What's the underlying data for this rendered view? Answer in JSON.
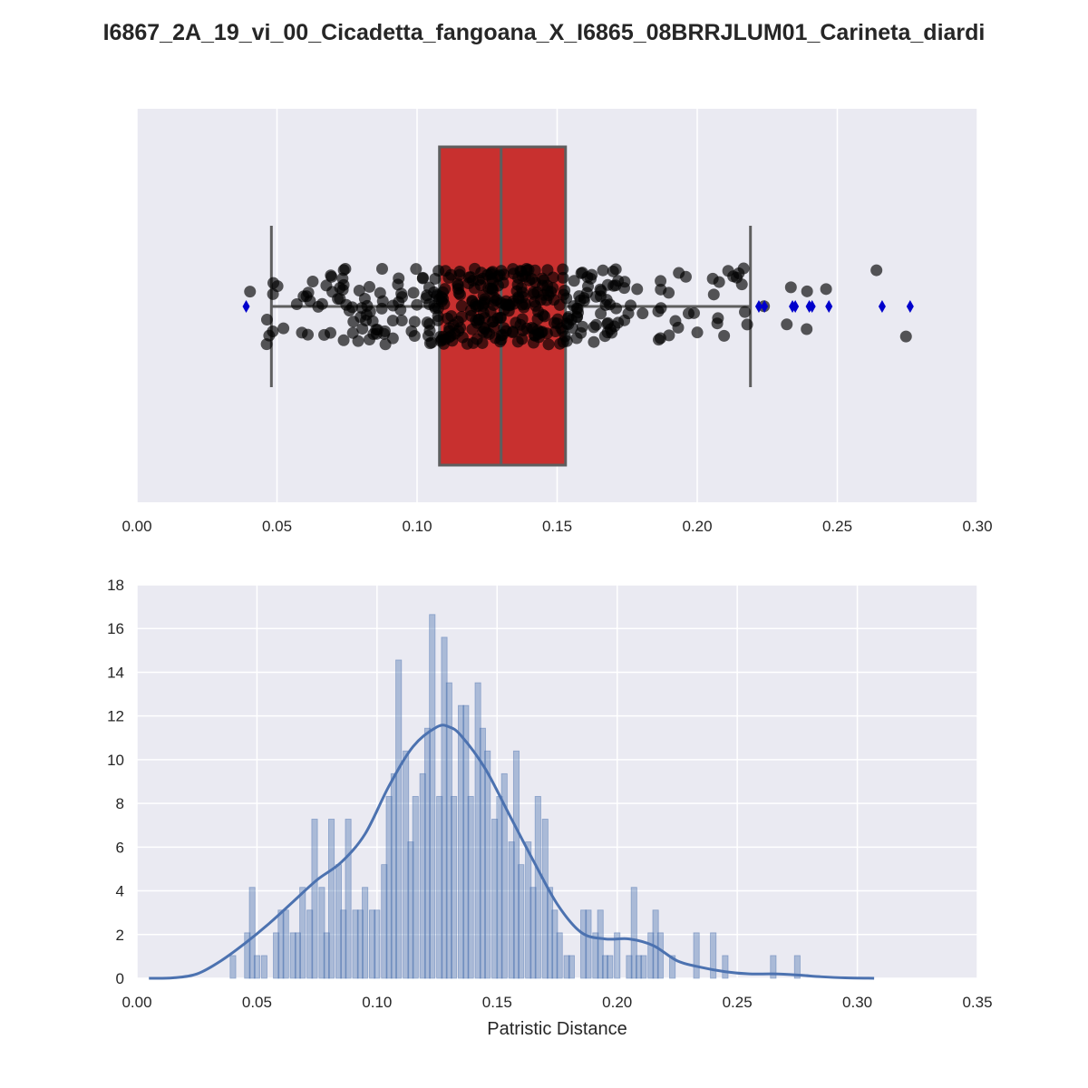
{
  "title": "I6867_2A_19_vi_00_Cicadetta_fangoana_X_I6865_08BRRJLUM01_Carineta_diardi",
  "colors": {
    "plot_background": "#EAEAF2",
    "grid": "#FFFFFF",
    "box_fill": "#C8302F",
    "box_edge": "#5E5E5E",
    "points": "#000000",
    "outlier_markers": "#0000CC",
    "hist_bars": "#4C72B0",
    "kde_line": "#4C72B0"
  },
  "chart_data": [
    {
      "type": "box",
      "orientation": "horizontal",
      "xlim": [
        0.0,
        0.3
      ],
      "xticks": [
        "0.00",
        "0.05",
        "0.10",
        "0.15",
        "0.20",
        "0.25",
        "0.30"
      ],
      "grid": true,
      "stats": {
        "whisker_low": 0.048,
        "q1": 0.108,
        "median": 0.13,
        "q3": 0.153,
        "whisker_high": 0.219
      },
      "outliers": [
        0.039,
        0.222,
        0.224,
        0.234,
        0.235,
        0.24,
        0.241,
        0.247,
        0.266,
        0.276
      ],
      "stripplot": "jittered points, one per pairwise distance (overlaid in black, semi-transparent)"
    },
    {
      "type": "bar",
      "subtype": "histogram_with_kde",
      "xlabel": "Patristic Distance",
      "ylabel": "",
      "xlim": [
        0.0,
        0.35
      ],
      "ylim": [
        0,
        18
      ],
      "xticks": [
        "0.00",
        "0.05",
        "0.10",
        "0.15",
        "0.20",
        "0.25",
        "0.30",
        "0.35"
      ],
      "yticks": [
        "0",
        "2",
        "4",
        "6",
        "8",
        "10",
        "12",
        "14",
        "16",
        "18"
      ],
      "grid": true,
      "bin_width": 0.00236,
      "bins": [
        {
          "x": 0.04,
          "y": 1.04
        },
        {
          "x": 0.046,
          "y": 2.08
        },
        {
          "x": 0.048,
          "y": 4.16
        },
        {
          "x": 0.05,
          "y": 1.04
        },
        {
          "x": 0.053,
          "y": 1.04
        },
        {
          "x": 0.058,
          "y": 2.08
        },
        {
          "x": 0.06,
          "y": 3.12
        },
        {
          "x": 0.062,
          "y": 3.12
        },
        {
          "x": 0.065,
          "y": 2.08
        },
        {
          "x": 0.067,
          "y": 2.08
        },
        {
          "x": 0.069,
          "y": 4.16
        },
        {
          "x": 0.072,
          "y": 3.12
        },
        {
          "x": 0.074,
          "y": 7.28
        },
        {
          "x": 0.077,
          "y": 4.16
        },
        {
          "x": 0.079,
          "y": 2.08
        },
        {
          "x": 0.081,
          "y": 7.28
        },
        {
          "x": 0.084,
          "y": 5.2
        },
        {
          "x": 0.086,
          "y": 3.12
        },
        {
          "x": 0.088,
          "y": 7.28
        },
        {
          "x": 0.091,
          "y": 3.12
        },
        {
          "x": 0.093,
          "y": 3.12
        },
        {
          "x": 0.095,
          "y": 4.16
        },
        {
          "x": 0.098,
          "y": 3.12
        },
        {
          "x": 0.1,
          "y": 3.12
        },
        {
          "x": 0.103,
          "y": 5.2
        },
        {
          "x": 0.105,
          "y": 8.32
        },
        {
          "x": 0.107,
          "y": 9.36
        },
        {
          "x": 0.109,
          "y": 14.56
        },
        {
          "x": 0.112,
          "y": 10.4
        },
        {
          "x": 0.114,
          "y": 6.24
        },
        {
          "x": 0.116,
          "y": 8.32
        },
        {
          "x": 0.119,
          "y": 9.36
        },
        {
          "x": 0.121,
          "y": 11.44
        },
        {
          "x": 0.123,
          "y": 16.64
        },
        {
          "x": 0.126,
          "y": 8.32
        },
        {
          "x": 0.128,
          "y": 15.6
        },
        {
          "x": 0.13,
          "y": 13.52
        },
        {
          "x": 0.132,
          "y": 8.32
        },
        {
          "x": 0.135,
          "y": 12.48
        },
        {
          "x": 0.137,
          "y": 12.48
        },
        {
          "x": 0.139,
          "y": 8.32
        },
        {
          "x": 0.142,
          "y": 13.52
        },
        {
          "x": 0.144,
          "y": 11.44
        },
        {
          "x": 0.146,
          "y": 10.4
        },
        {
          "x": 0.149,
          "y": 7.28
        },
        {
          "x": 0.151,
          "y": 8.32
        },
        {
          "x": 0.153,
          "y": 9.36
        },
        {
          "x": 0.156,
          "y": 6.24
        },
        {
          "x": 0.158,
          "y": 10.4
        },
        {
          "x": 0.16,
          "y": 5.2
        },
        {
          "x": 0.163,
          "y": 6.24
        },
        {
          "x": 0.165,
          "y": 4.16
        },
        {
          "x": 0.167,
          "y": 8.32
        },
        {
          "x": 0.17,
          "y": 7.28
        },
        {
          "x": 0.172,
          "y": 4.16
        },
        {
          "x": 0.174,
          "y": 3.12
        },
        {
          "x": 0.176,
          "y": 2.08
        },
        {
          "x": 0.179,
          "y": 1.04
        },
        {
          "x": 0.181,
          "y": 1.04
        },
        {
          "x": 0.186,
          "y": 3.12
        },
        {
          "x": 0.188,
          "y": 3.12
        },
        {
          "x": 0.191,
          "y": 2.08
        },
        {
          "x": 0.193,
          "y": 3.12
        },
        {
          "x": 0.195,
          "y": 1.04
        },
        {
          "x": 0.197,
          "y": 1.04
        },
        {
          "x": 0.2,
          "y": 2.08
        },
        {
          "x": 0.205,
          "y": 1.04
        },
        {
          "x": 0.207,
          "y": 4.16
        },
        {
          "x": 0.209,
          "y": 1.04
        },
        {
          "x": 0.211,
          "y": 1.04
        },
        {
          "x": 0.214,
          "y": 2.08
        },
        {
          "x": 0.216,
          "y": 3.12
        },
        {
          "x": 0.218,
          "y": 2.08
        },
        {
          "x": 0.223,
          "y": 1.04
        },
        {
          "x": 0.233,
          "y": 2.08
        },
        {
          "x": 0.24,
          "y": 2.08
        },
        {
          "x": 0.245,
          "y": 1.04
        },
        {
          "x": 0.265,
          "y": 1.04
        },
        {
          "x": 0.275,
          "y": 1.04
        }
      ],
      "kde": {
        "x": [
          0.005,
          0.015,
          0.025,
          0.035,
          0.045,
          0.055,
          0.065,
          0.075,
          0.085,
          0.095,
          0.105,
          0.115,
          0.125,
          0.13,
          0.135,
          0.145,
          0.155,
          0.165,
          0.175,
          0.185,
          0.195,
          0.205,
          0.215,
          0.225,
          0.235,
          0.245,
          0.255,
          0.265,
          0.275,
          0.285,
          0.295,
          0.307
        ],
        "y": [
          0.0,
          0.02,
          0.2,
          0.8,
          1.6,
          2.5,
          3.5,
          4.5,
          5.3,
          6.6,
          8.8,
          10.6,
          11.5,
          11.5,
          11.1,
          9.6,
          7.5,
          5.4,
          3.4,
          2.1,
          1.8,
          1.8,
          1.5,
          0.8,
          0.5,
          0.3,
          0.2,
          0.2,
          0.15,
          0.07,
          0.02,
          0.0
        ]
      }
    }
  ]
}
